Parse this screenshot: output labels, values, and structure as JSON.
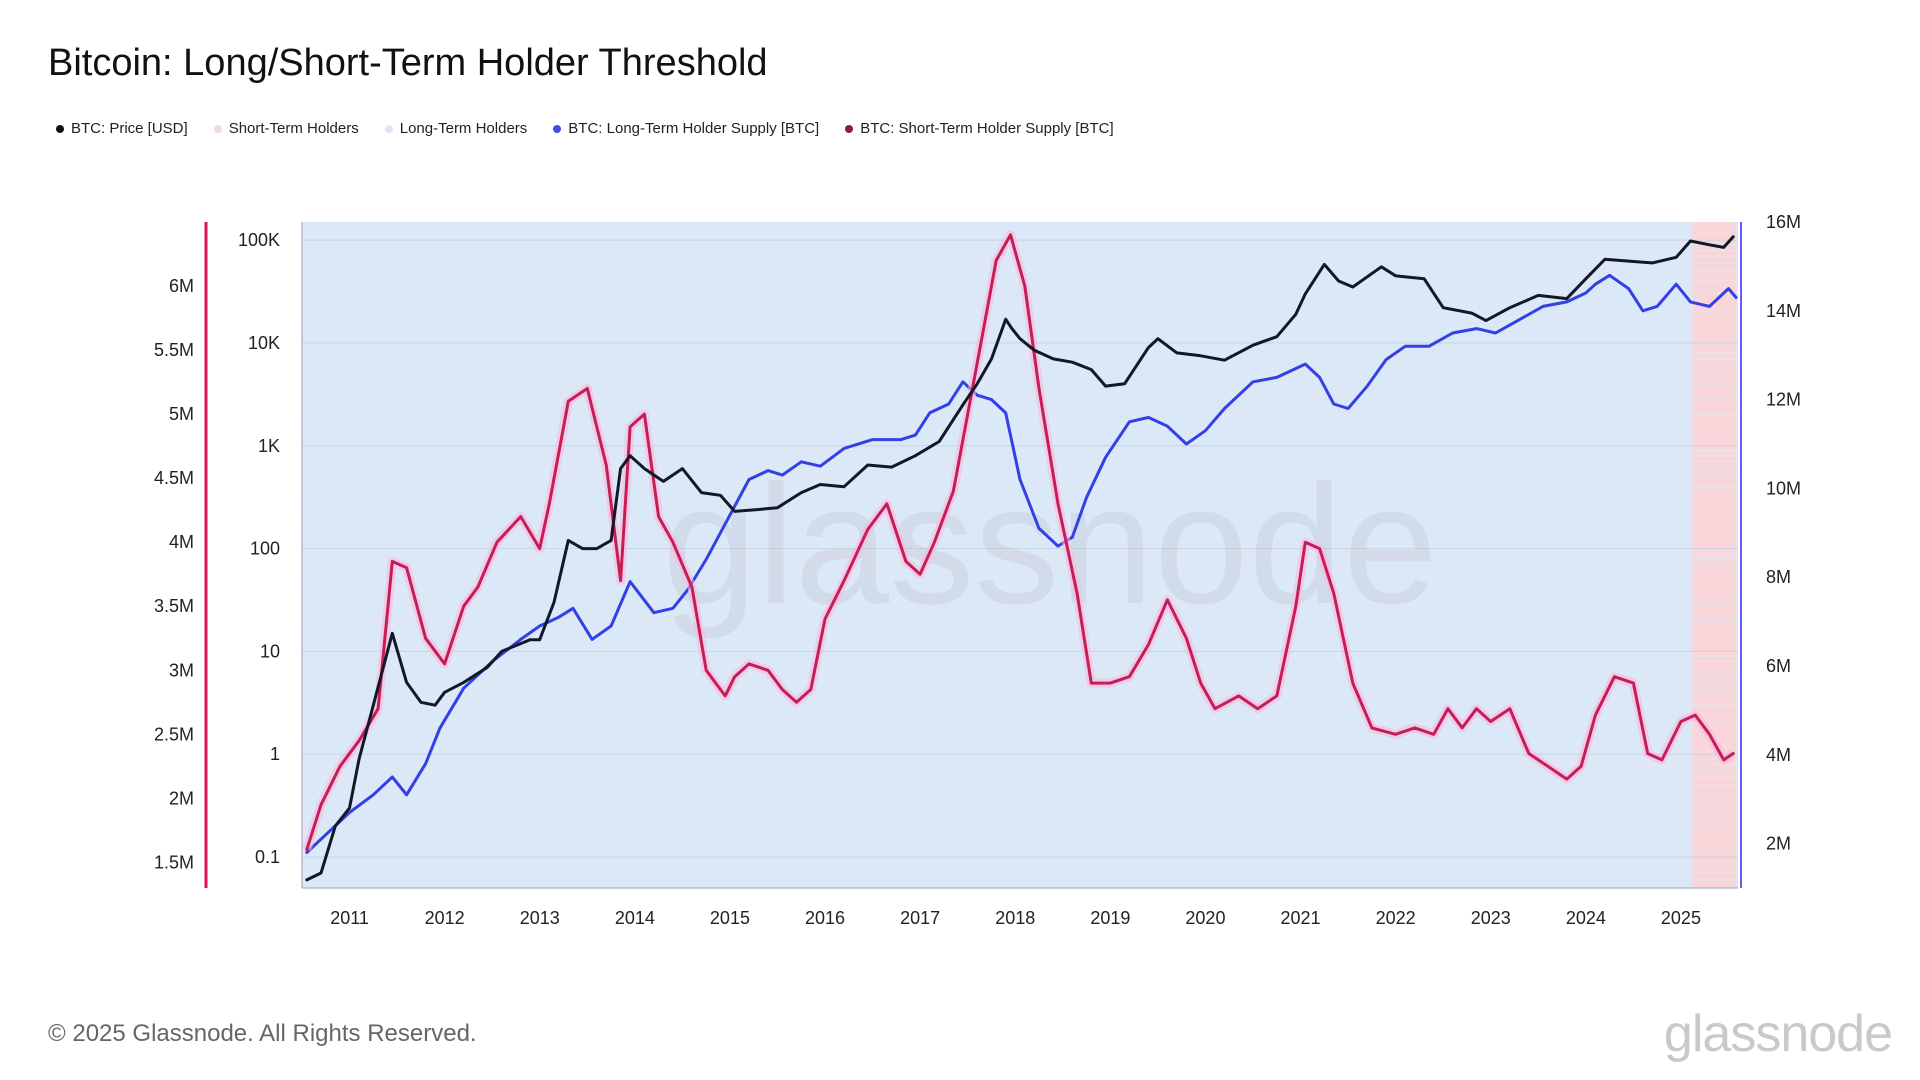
{
  "title": "Bitcoin: Long/Short-Term Holder Threshold",
  "legend": [
    {
      "label": "BTC: Price [USD]",
      "color": "#111111"
    },
    {
      "label": "Short-Term Holders",
      "color": "#f2d9dd"
    },
    {
      "label": "Long-Term Holders",
      "color": "#dbe6f7"
    },
    {
      "label": "BTC: Long-Term Holder Supply [BTC]",
      "color": "#3a4ee8"
    },
    {
      "label": "BTC: Short-Term Holder Supply [BTC]",
      "color": "#8a1f3e"
    }
  ],
  "footer": "© 2025 Glassnode. All Rights Reserved.",
  "brand": "glassnode",
  "watermark": "glassnode",
  "colors": {
    "price": "#111827",
    "lth": "#3340e6",
    "sth": "#c41e54",
    "lth_fill": "#dbe8f8",
    "sth_fill": "#f8d6da",
    "left_axis": "#e0114f",
    "right_axis": "#6a5cf0"
  },
  "chart_data": {
    "type": "line",
    "x_ticks": [
      "2011",
      "2012",
      "2013",
      "2014",
      "2015",
      "2016",
      "2017",
      "2018",
      "2019",
      "2020",
      "2021",
      "2022",
      "2023",
      "2024",
      "2025"
    ],
    "x_range": [
      2010.5,
      2025.6
    ],
    "price_axis": {
      "labels": [
        "100K",
        "10K",
        "1K",
        "100",
        "10",
        "1",
        "0.1"
      ],
      "values": [
        100000,
        10000,
        1000,
        100,
        10,
        1,
        0.1
      ],
      "ylim": [
        0.05,
        150000
      ],
      "scale": "log"
    },
    "left_axis": {
      "labels": [
        "6M",
        "5.5M",
        "5M",
        "4.5M",
        "4M",
        "3.5M",
        "3M",
        "2.5M",
        "2M",
        "1.5M"
      ],
      "values": [
        6000000,
        5500000,
        5000000,
        4500000,
        4000000,
        3500000,
        3000000,
        2500000,
        2000000,
        1500000
      ],
      "ylim": [
        1300000,
        6500000
      ]
    },
    "right_axis": {
      "labels": [
        "16M",
        "14M",
        "12M",
        "10M",
        "8M",
        "6M",
        "4M",
        "2M"
      ],
      "values": [
        16000000,
        14000000,
        12000000,
        10000000,
        8000000,
        6000000,
        4000000,
        2000000
      ],
      "ylim": [
        1000000,
        16000000
      ]
    },
    "threshold_region": {
      "start": 2025.12,
      "end": 2025.58
    },
    "series": [
      {
        "name": "BTC: Price [USD]",
        "axis": "price",
        "x": [
          2010.55,
          2010.7,
          2010.85,
          2011.0,
          2011.1,
          2011.25,
          2011.45,
          2011.6,
          2011.75,
          2011.9,
          2012.0,
          2012.2,
          2012.45,
          2012.6,
          2012.9,
          2013.0,
          2013.15,
          2013.3,
          2013.45,
          2013.6,
          2013.75,
          2013.85,
          2013.95,
          2014.1,
          2014.3,
          2014.5,
          2014.7,
          2014.9,
          2015.05,
          2015.3,
          2015.5,
          2015.75,
          2015.95,
          2016.2,
          2016.45,
          2016.7,
          2016.95,
          2017.2,
          2017.45,
          2017.6,
          2017.75,
          2017.9,
          2017.96,
          2018.05,
          2018.2,
          2018.4,
          2018.6,
          2018.8,
          2018.95,
          2019.15,
          2019.4,
          2019.5,
          2019.7,
          2019.95,
          2020.2,
          2020.5,
          2020.75,
          2020.95,
          2021.05,
          2021.25,
          2021.4,
          2021.55,
          2021.85,
          2022.0,
          2022.3,
          2022.5,
          2022.8,
          2022.95,
          2023.2,
          2023.5,
          2023.8,
          2024.0,
          2024.2,
          2024.5,
          2024.7,
          2024.95,
          2025.1,
          2025.3,
          2025.45,
          2025.55
        ],
        "y": [
          0.06,
          0.07,
          0.2,
          0.3,
          0.9,
          3,
          15,
          5,
          3.2,
          3,
          4,
          5,
          7,
          10,
          13,
          13,
          30,
          120,
          100,
          100,
          120,
          600,
          800,
          600,
          450,
          600,
          350,
          330,
          230,
          240,
          250,
          350,
          420,
          400,
          650,
          620,
          800,
          1100,
          2500,
          4000,
          7000,
          17000,
          14000,
          11000,
          8500,
          7000,
          6500,
          5500,
          3800,
          4000,
          9000,
          11000,
          8000,
          7500,
          6800,
          9500,
          11500,
          19000,
          30000,
          58000,
          40000,
          35000,
          55000,
          45000,
          42000,
          22000,
          19500,
          16500,
          22000,
          29000,
          27000,
          42000,
          65000,
          62000,
          60000,
          68000,
          98000,
          90000,
          85000,
          108000
        ]
      },
      {
        "name": "BTC: Long-Term Holder Supply [BTC]",
        "axis": "right",
        "x": [
          2010.55,
          2010.75,
          2011.0,
          2011.25,
          2011.45,
          2011.6,
          2011.8,
          2011.95,
          2012.2,
          2012.5,
          2012.8,
          2013.0,
          2013.2,
          2013.35,
          2013.55,
          2013.75,
          2013.95,
          2014.2,
          2014.4,
          2014.55,
          2014.75,
          2014.95,
          2015.2,
          2015.4,
          2015.55,
          2015.75,
          2015.95,
          2016.2,
          2016.5,
          2016.8,
          2016.95,
          2017.1,
          2017.3,
          2017.45,
          2017.6,
          2017.75,
          2017.9,
          2018.05,
          2018.25,
          2018.45,
          2018.6,
          2018.75,
          2018.95,
          2019.2,
          2019.4,
          2019.6,
          2019.8,
          2020.0,
          2020.2,
          2020.5,
          2020.75,
          2020.95,
          2021.05,
          2021.2,
          2021.35,
          2021.5,
          2021.7,
          2021.9,
          2022.1,
          2022.35,
          2022.6,
          2022.85,
          2023.05,
          2023.3,
          2023.55,
          2023.8,
          2024.0,
          2024.1,
          2024.25,
          2024.45,
          2024.6,
          2024.75,
          2024.95,
          2025.1,
          2025.3,
          2025.5,
          2025.58
        ],
        "y": [
          1.8,
          2.2,
          2.7,
          3.1,
          3.5,
          3.1,
          3.8,
          4.6,
          5.5,
          6.1,
          6.6,
          6.9,
          7.1,
          7.3,
          6.6,
          6.9,
          7.9,
          7.2,
          7.3,
          7.7,
          8.4,
          9.2,
          10.2,
          10.4,
          10.3,
          10.6,
          10.5,
          10.9,
          11.1,
          11.1,
          11.2,
          11.7,
          11.9,
          12.4,
          12.1,
          12.0,
          11.7,
          10.2,
          9.1,
          8.7,
          8.9,
          9.8,
          10.7,
          11.5,
          11.6,
          11.4,
          11.0,
          11.3,
          11.8,
          12.4,
          12.5,
          12.7,
          12.8,
          12.5,
          11.9,
          11.8,
          12.3,
          12.9,
          13.2,
          13.2,
          13.5,
          13.6,
          13.5,
          13.8,
          14.1,
          14.2,
          14.4,
          14.6,
          14.8,
          14.5,
          14.0,
          14.1,
          14.6,
          14.2,
          14.1,
          14.5,
          14.3
        ]
      },
      {
        "name": "BTC: Short-Term Holder Supply [BTC]",
        "axis": "left",
        "x": [
          2010.55,
          2010.7,
          2010.9,
          2011.1,
          2011.3,
          2011.45,
          2011.6,
          2011.8,
          2012.0,
          2012.2,
          2012.35,
          2012.55,
          2012.8,
          2013.0,
          2013.1,
          2013.3,
          2013.5,
          2013.7,
          2013.85,
          2013.95,
          2014.1,
          2014.25,
          2014.4,
          2014.6,
          2014.75,
          2014.95,
          2015.05,
          2015.2,
          2015.4,
          2015.55,
          2015.7,
          2015.85,
          2016.0,
          2016.2,
          2016.45,
          2016.65,
          2016.85,
          2017.0,
          2017.15,
          2017.35,
          2017.5,
          2017.65,
          2017.8,
          2017.95,
          2018.1,
          2018.25,
          2018.45,
          2018.65,
          2018.8,
          2019.0,
          2019.2,
          2019.4,
          2019.6,
          2019.8,
          2019.95,
          2020.1,
          2020.35,
          2020.55,
          2020.75,
          2020.95,
          2021.05,
          2021.2,
          2021.35,
          2021.55,
          2021.75,
          2022.0,
          2022.2,
          2022.4,
          2022.55,
          2022.7,
          2022.85,
          2023.0,
          2023.2,
          2023.4,
          2023.6,
          2023.8,
          2023.95,
          2024.1,
          2024.3,
          2024.5,
          2024.65,
          2024.8,
          2025.0,
          2025.15,
          2025.3,
          2025.45,
          2025.55
        ],
        "y": [
          1.6,
          1.95,
          2.25,
          2.45,
          2.7,
          3.85,
          3.8,
          3.25,
          3.05,
          3.5,
          3.65,
          4.0,
          4.2,
          3.95,
          4.3,
          5.1,
          5.2,
          4.6,
          3.7,
          4.9,
          5.0,
          4.2,
          4.0,
          3.65,
          3.0,
          2.8,
          2.95,
          3.05,
          3.0,
          2.85,
          2.75,
          2.85,
          3.4,
          3.7,
          4.1,
          4.3,
          3.85,
          3.75,
          4.0,
          4.4,
          5.0,
          5.6,
          6.2,
          6.4,
          6.0,
          5.2,
          4.3,
          3.6,
          2.9,
          2.9,
          2.95,
          3.2,
          3.55,
          3.25,
          2.9,
          2.7,
          2.8,
          2.7,
          2.8,
          3.5,
          4.0,
          3.95,
          3.6,
          2.9,
          2.55,
          2.5,
          2.55,
          2.5,
          2.7,
          2.55,
          2.7,
          2.6,
          2.7,
          2.35,
          2.25,
          2.15,
          2.25,
          2.65,
          2.95,
          2.9,
          2.35,
          2.3,
          2.6,
          2.65,
          2.5,
          2.3,
          2.35
        ]
      }
    ]
  }
}
